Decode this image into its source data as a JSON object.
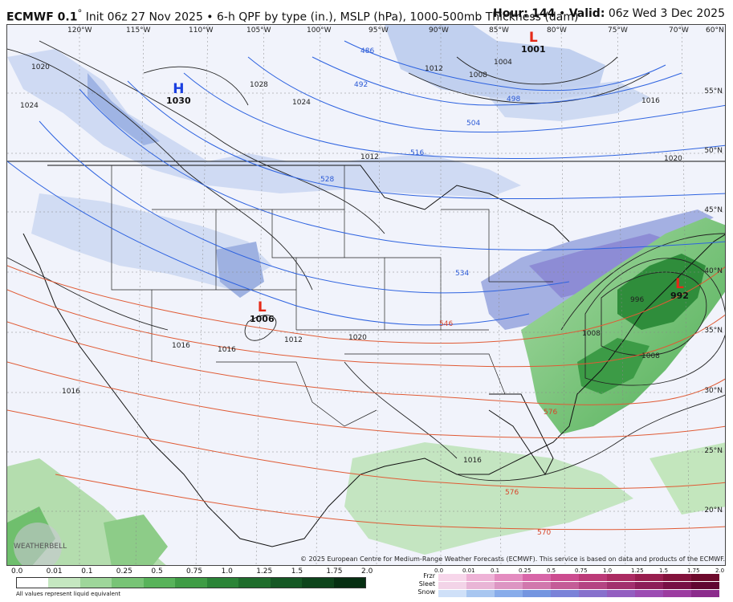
{
  "header": {
    "model": "ECMWF 0.1",
    "init_text": "Init 06z 27 Nov 2025 • 6-h QPF by type (in.), MSLP (hPa), 1000-500mb Thickness (dam)",
    "hour_label": "Hour:",
    "hour_value": "144",
    "valid_label": "Valid:",
    "valid_value": "06z Wed 3 Dec 2025"
  },
  "map": {
    "lon_labels": [
      "120°W",
      "115°W",
      "110°W",
      "105°W",
      "100°W",
      "95°W",
      "90°W",
      "85°W",
      "80°W",
      "75°W",
      "70°W",
      "60°N"
    ],
    "lat_labels": [
      "55°N",
      "50°N",
      "45°N",
      "40°N",
      "35°N",
      "30°N",
      "25°N",
      "20°N"
    ],
    "pressure_systems": [
      {
        "type": "H",
        "value": "1030"
      },
      {
        "type": "L",
        "value": "1001"
      },
      {
        "type": "L",
        "value": "1006"
      },
      {
        "type": "L",
        "value": "992"
      }
    ],
    "thickness_labels": [
      "486",
      "492",
      "498",
      "504",
      "516",
      "528",
      "534",
      "546",
      "576",
      "576",
      "570"
    ],
    "isobar_labels": [
      "1004",
      "1008",
      "1012",
      "1016",
      "1020",
      "1024",
      "1028",
      "1020",
      "1012",
      "1016",
      "1012",
      "1016",
      "1016",
      "1008",
      "996",
      "1008",
      "1024",
      "1016",
      "1020"
    ]
  },
  "copyright": "© 2025 European Centre for Medium-Range Weather Forecasts (ECMWF). This service is based on data and products of the ECMWF.",
  "watermark": "WEATHERBELL",
  "legend": {
    "rain_ticks": [
      "0.0",
      "0.01",
      "0.1",
      "0.25",
      "0.5",
      "0.75",
      "1.0",
      "1.25",
      "1.5",
      "1.75",
      "2.0"
    ],
    "note": "All values represent liquid equivalent",
    "ptype_labels": [
      "Frzr",
      "Sleet",
      "Snow"
    ],
    "ptype_ticks": [
      "0.0",
      "0.01",
      "0.1",
      "0.25",
      "0.5",
      "0.75",
      "1.0",
      "1.25",
      "1.5",
      "1.75",
      "2.0"
    ],
    "colors": {
      "rain": [
        "#ffffff",
        "#c5e7c0",
        "#9ed69a",
        "#78c476",
        "#58b35a",
        "#3f9c45",
        "#2b8437",
        "#1f6d2c",
        "#155824",
        "#0d441b",
        "#062f12"
      ],
      "frzr": [
        "#f7d6ea",
        "#eeb2d6",
        "#e48cc0",
        "#d866a8",
        "#cc4c8f",
        "#bc3a78",
        "#ab2b62",
        "#981e4e",
        "#83133c",
        "#6d0a2c"
      ],
      "sleet": [
        "#f3d4e8",
        "#e9b5d6",
        "#dd96c3",
        "#d178ad",
        "#c45c97",
        "#b44482",
        "#a2306d",
        "#8d1e58",
        "#770f44",
        "#610632"
      ],
      "snow": [
        "#cfe0f8",
        "#a8c6f0",
        "#88acea",
        "#7495e0",
        "#7a82d8",
        "#8770cc",
        "#935ec0",
        "#9c4cb2",
        "#9c3ca0",
        "#8c2c8c"
      ]
    }
  }
}
